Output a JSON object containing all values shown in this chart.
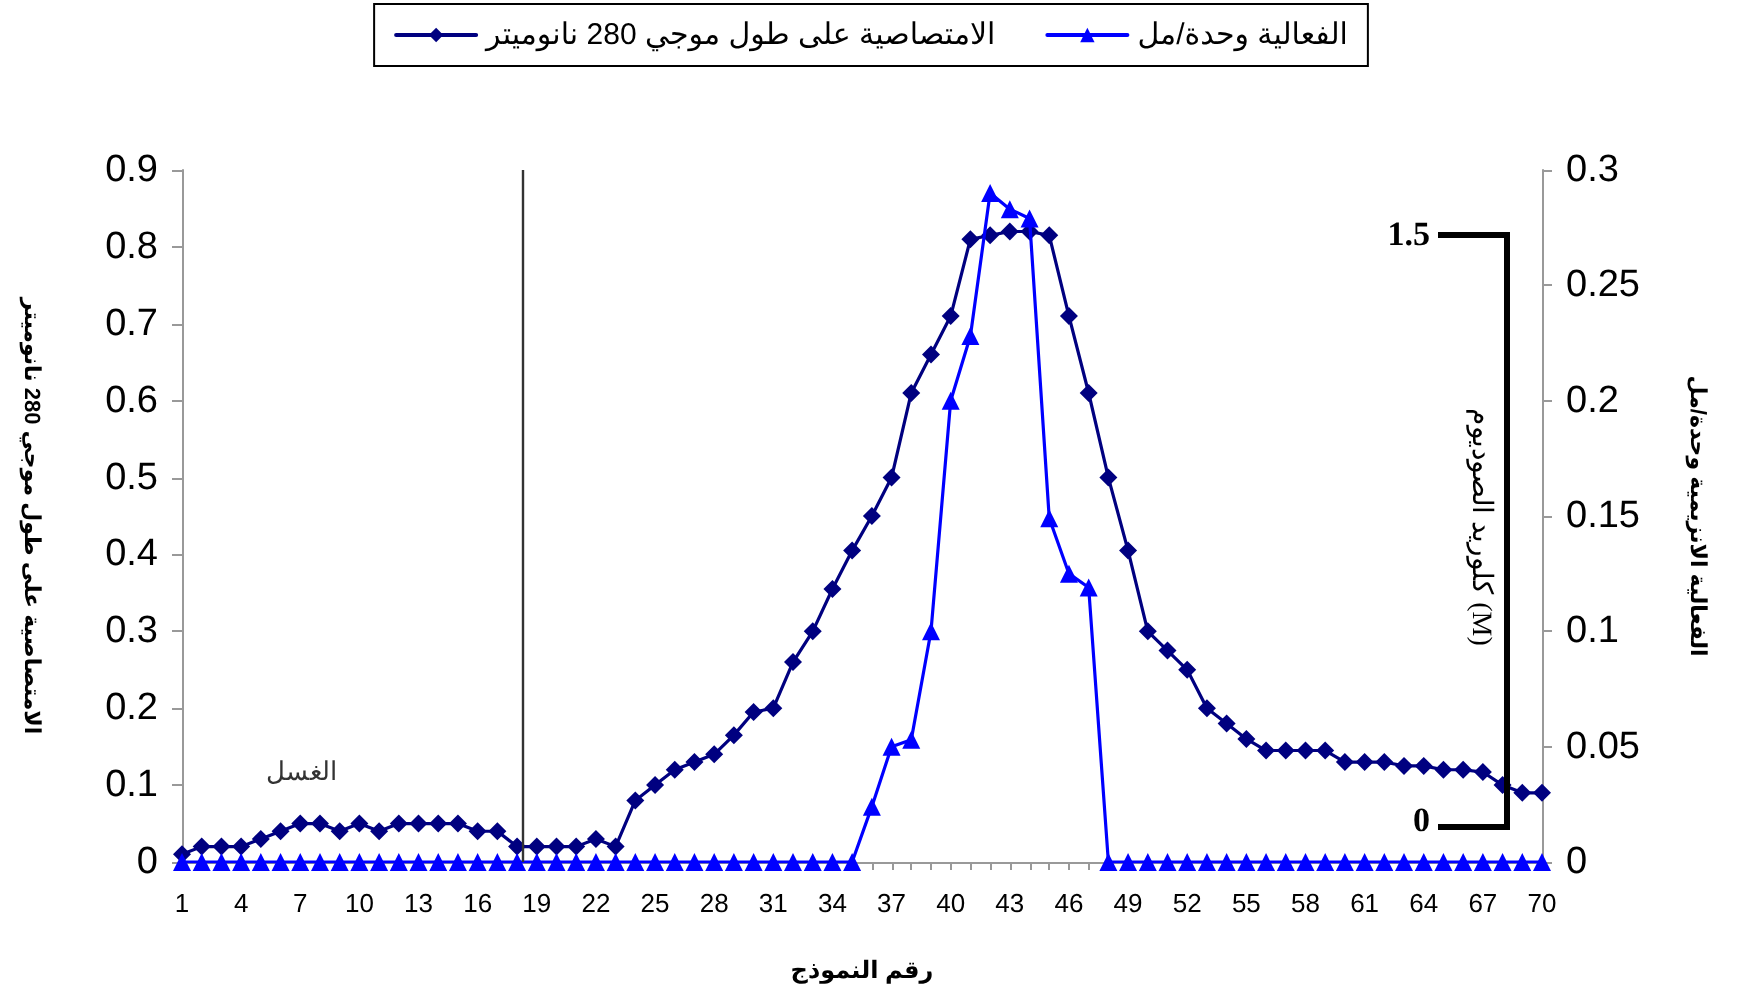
{
  "chart_data": {
    "type": "line",
    "xlabel": "رقم النموذج",
    "ylabel": "الامتصاصية على طول موجي 280 نانوميتر",
    "y2label": "الفعالية الانزيمية وحدة/مل",
    "y3label": "كلوريد الصوديوم (M)",
    "x": [
      1,
      2,
      3,
      4,
      5,
      6,
      7,
      8,
      9,
      10,
      11,
      12,
      13,
      14,
      15,
      16,
      17,
      18,
      19,
      20,
      21,
      22,
      23,
      24,
      25,
      26,
      27,
      28,
      29,
      30,
      31,
      32,
      33,
      34,
      35,
      36,
      37,
      38,
      39,
      40,
      41,
      42,
      43,
      44,
      45,
      46,
      47,
      48,
      49,
      50,
      51,
      52,
      53,
      54,
      55,
      56,
      57,
      58,
      59,
      60,
      61,
      62,
      63,
      64,
      65,
      66,
      67,
      68,
      69,
      70
    ],
    "xlim": [
      1,
      70
    ],
    "xticks": [
      1,
      {
        "value": 2,
        "label": null
      },
      {
        "value": 3,
        "label": null
      },
      4,
      {
        "value": 5,
        "label": null
      },
      {
        "value": 6,
        "label": null
      },
      7,
      {
        "value": 8,
        "label": null
      },
      {
        "value": 9,
        "label": null
      },
      10,
      {
        "value": 11,
        "label": null
      },
      {
        "value": 12,
        "label": null
      },
      13,
      {
        "value": 14,
        "label": null
      },
      {
        "value": 15,
        "label": null
      },
      16,
      {
        "value": 17,
        "label": null
      },
      {
        "value": 18,
        "label": null
      },
      19,
      {
        "value": 20,
        "label": null
      },
      {
        "value": 21,
        "label": null
      },
      22,
      {
        "value": 23,
        "label": null
      },
      {
        "value": 24,
        "label": null
      },
      25,
      {
        "value": 26,
        "label": null
      },
      {
        "value": 27,
        "label": null
      },
      28,
      {
        "value": 29,
        "label": null
      },
      {
        "value": 30,
        "label": null
      },
      31,
      {
        "value": 32,
        "label": null
      },
      {
        "value": 33,
        "label": null
      },
      34,
      {
        "value": 35,
        "label": null
      },
      {
        "value": 36,
        "label": null
      },
      37,
      {
        "value": 38,
        "label": null
      },
      {
        "value": 39,
        "label": null
      },
      40,
      {
        "value": 41,
        "label": null
      },
      {
        "value": 42,
        "label": null
      },
      43,
      {
        "value": 44,
        "label": null
      },
      {
        "value": 45,
        "label": null
      },
      46,
      {
        "value": 47,
        "label": null
      },
      {
        "value": 48,
        "label": null
      },
      49,
      {
        "value": 50,
        "label": null
      },
      {
        "value": 51,
        "label": null
      },
      52,
      {
        "value": 53,
        "label": null
      },
      {
        "value": 54,
        "label": null
      },
      55,
      {
        "value": 56,
        "label": null
      },
      {
        "value": 57,
        "label": null
      },
      58,
      {
        "value": 59,
        "label": null
      },
      {
        "value": 60,
        "label": null
      },
      61,
      {
        "value": 62,
        "label": null
      },
      {
        "value": 63,
        "label": null
      },
      64,
      {
        "value": 65,
        "label": null
      },
      {
        "value": 66,
        "label": null
      },
      67,
      {
        "value": 68,
        "label": null
      },
      {
        "value": 69,
        "label": null
      },
      70
    ],
    "ylim": [
      0,
      0.9
    ],
    "yticks": [
      0,
      0.1,
      0.2,
      0.3,
      0.4,
      0.5,
      0.6,
      0.7,
      0.8,
      0.9
    ],
    "y2lim": [
      0,
      0.3
    ],
    "y2ticks": [
      0,
      0.05,
      0.1,
      0.15,
      0.2,
      0.25,
      0.3
    ],
    "y3lim": [
      0,
      1.5
    ],
    "y3ticks": [
      0,
      1.5
    ],
    "grid": false,
    "legend": "top",
    "line_style": "solid",
    "ref_lines": [
      {
        "axis": "x",
        "value": 18.3,
        "color": "#333333"
      }
    ],
    "annotations": [
      "الغسل"
    ],
    "series": [
      {
        "name": "الامتصاصية على طول موجي 280 نانوميتر",
        "color": "#000080",
        "marker": "diamond",
        "values": [
          0.01,
          0.02,
          0.02,
          0.02,
          0.03,
          0.04,
          0.05,
          0.05,
          0.04,
          0.05,
          0.04,
          0.05,
          0.05,
          0.05,
          0.05,
          0.04,
          0.04,
          0.02,
          0.02,
          0.02,
          0.02,
          0.03,
          0.02,
          0.08,
          0.1,
          0.12,
          0.13,
          0.14,
          0.165,
          0.195,
          0.2,
          0.26,
          0.3,
          0.355,
          0.405,
          0.45,
          0.5,
          0.61,
          0.66,
          0.71,
          0.81,
          0.815,
          0.82,
          0.82,
          0.815,
          0.71,
          0.61,
          0.5,
          0.405,
          0.3,
          0.275,
          0.25,
          0.2,
          0.18,
          0.16,
          0.145,
          0.145,
          0.145,
          0.145,
          0.13,
          0.13,
          0.13,
          0.125,
          0.125,
          0.12,
          0.12,
          0.117,
          0.1,
          0.09,
          0.09
        ]
      },
      {
        "name": "الفعالية وحدة/مل",
        "color": "#0000ff",
        "marker": "triangle",
        "axis": "y2",
        "values": [
          0,
          0,
          0,
          0,
          0,
          0,
          0,
          0,
          0,
          0,
          0,
          0,
          0,
          0,
          0,
          0,
          0,
          0,
          0,
          0,
          0,
          0,
          0,
          0,
          0,
          0,
          0,
          0,
          0,
          0,
          0,
          0,
          0,
          0,
          0,
          0.024,
          0.05,
          0.053,
          0.1,
          0.2,
          0.228,
          0.29,
          0.283,
          0.279,
          0.149,
          0.125,
          0.119,
          0,
          0,
          0,
          0,
          0,
          0,
          0,
          0,
          0,
          0,
          0,
          0,
          0,
          0,
          0,
          0,
          0,
          0,
          0,
          0,
          0,
          0,
          0
        ]
      }
    ]
  }
}
